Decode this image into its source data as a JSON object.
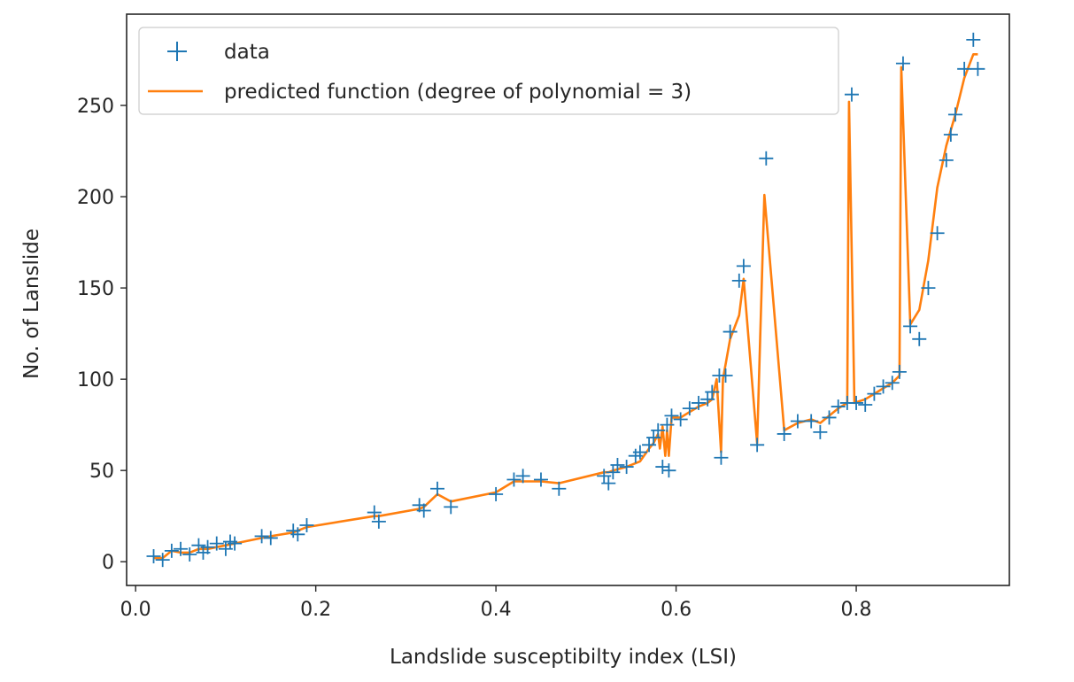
{
  "chart_data": {
    "type": "scatter",
    "title": "",
    "xlabel": "Landslide susceptibilty index (LSI)",
    "ylabel": "No. of Lanslide",
    "xlim": [
      -0.01,
      0.97
    ],
    "ylim": [
      -13,
      300
    ],
    "x_ticks": [
      0.0,
      0.2,
      0.4,
      0.6,
      0.8
    ],
    "x_tick_labels": [
      "0.0",
      "0.2",
      "0.4",
      "0.6",
      "0.8"
    ],
    "y_ticks": [
      0,
      50,
      100,
      150,
      200,
      250
    ],
    "y_tick_labels": [
      "0",
      "50",
      "100",
      "150",
      "200",
      "250"
    ],
    "grid": false,
    "legend_position": "top-left",
    "colors": {
      "data": "#1f77b4",
      "predicted": "#ff7f0e",
      "axes": "#262626"
    },
    "series": [
      {
        "name": "data",
        "marker": "+",
        "points": [
          [
            0.02,
            3
          ],
          [
            0.03,
            1
          ],
          [
            0.04,
            6
          ],
          [
            0.05,
            7
          ],
          [
            0.06,
            4
          ],
          [
            0.07,
            9
          ],
          [
            0.075,
            5
          ],
          [
            0.08,
            8
          ],
          [
            0.09,
            10
          ],
          [
            0.1,
            7
          ],
          [
            0.105,
            11
          ],
          [
            0.11,
            10
          ],
          [
            0.14,
            14
          ],
          [
            0.15,
            13
          ],
          [
            0.175,
            17
          ],
          [
            0.18,
            15
          ],
          [
            0.19,
            20
          ],
          [
            0.265,
            27
          ],
          [
            0.27,
            22
          ],
          [
            0.315,
            31
          ],
          [
            0.32,
            28
          ],
          [
            0.335,
            40
          ],
          [
            0.35,
            30
          ],
          [
            0.4,
            37
          ],
          [
            0.42,
            45
          ],
          [
            0.43,
            47
          ],
          [
            0.45,
            45
          ],
          [
            0.47,
            40
          ],
          [
            0.52,
            47
          ],
          [
            0.525,
            43
          ],
          [
            0.53,
            49
          ],
          [
            0.535,
            53
          ],
          [
            0.545,
            52
          ],
          [
            0.555,
            58
          ],
          [
            0.56,
            60
          ],
          [
            0.57,
            64
          ],
          [
            0.575,
            68
          ],
          [
            0.58,
            72
          ],
          [
            0.585,
            52
          ],
          [
            0.59,
            75
          ],
          [
            0.592,
            50
          ],
          [
            0.595,
            80
          ],
          [
            0.605,
            78
          ],
          [
            0.615,
            84
          ],
          [
            0.625,
            87
          ],
          [
            0.635,
            89
          ],
          [
            0.64,
            93
          ],
          [
            0.648,
            102
          ],
          [
            0.65,
            57
          ],
          [
            0.655,
            102
          ],
          [
            0.66,
            126
          ],
          [
            0.67,
            154
          ],
          [
            0.675,
            162
          ],
          [
            0.69,
            64
          ],
          [
            0.7,
            221
          ],
          [
            0.72,
            70
          ],
          [
            0.735,
            77
          ],
          [
            0.75,
            77
          ],
          [
            0.76,
            71
          ],
          [
            0.77,
            79
          ],
          [
            0.78,
            85
          ],
          [
            0.79,
            87
          ],
          [
            0.795,
            256
          ],
          [
            0.8,
            87
          ],
          [
            0.81,
            86
          ],
          [
            0.82,
            92
          ],
          [
            0.83,
            96
          ],
          [
            0.84,
            98
          ],
          [
            0.848,
            104
          ],
          [
            0.852,
            273
          ],
          [
            0.86,
            129
          ],
          [
            0.87,
            122
          ],
          [
            0.88,
            150
          ],
          [
            0.89,
            180
          ],
          [
            0.9,
            220
          ],
          [
            0.905,
            234
          ],
          [
            0.91,
            245
          ],
          [
            0.92,
            270
          ],
          [
            0.93,
            286
          ],
          [
            0.935,
            270
          ]
        ]
      },
      {
        "name": "predicted function (degree of polynomial = 3)",
        "marker": "line",
        "points": [
          [
            0.02,
            2
          ],
          [
            0.03,
            2
          ],
          [
            0.04,
            6
          ],
          [
            0.05,
            5
          ],
          [
            0.06,
            5
          ],
          [
            0.07,
            7
          ],
          [
            0.08,
            7
          ],
          [
            0.09,
            8
          ],
          [
            0.1,
            9
          ],
          [
            0.11,
            10
          ],
          [
            0.14,
            13
          ],
          [
            0.15,
            14
          ],
          [
            0.175,
            16
          ],
          [
            0.18,
            17
          ],
          [
            0.19,
            19
          ],
          [
            0.265,
            25
          ],
          [
            0.27,
            25
          ],
          [
            0.315,
            29
          ],
          [
            0.32,
            30
          ],
          [
            0.335,
            37
          ],
          [
            0.35,
            33
          ],
          [
            0.4,
            38
          ],
          [
            0.42,
            44
          ],
          [
            0.43,
            44
          ],
          [
            0.45,
            44
          ],
          [
            0.47,
            43
          ],
          [
            0.52,
            49
          ],
          [
            0.525,
            49
          ],
          [
            0.53,
            50
          ],
          [
            0.545,
            52
          ],
          [
            0.56,
            55
          ],
          [
            0.57,
            62
          ],
          [
            0.575,
            65
          ],
          [
            0.58,
            70
          ],
          [
            0.582,
            62
          ],
          [
            0.585,
            74
          ],
          [
            0.588,
            58
          ],
          [
            0.59,
            72
          ],
          [
            0.592,
            58
          ],
          [
            0.595,
            79
          ],
          [
            0.605,
            79
          ],
          [
            0.615,
            82
          ],
          [
            0.625,
            85
          ],
          [
            0.635,
            87
          ],
          [
            0.64,
            89
          ],
          [
            0.645,
            100
          ],
          [
            0.65,
            60
          ],
          [
            0.652,
            100
          ],
          [
            0.66,
            122
          ],
          [
            0.67,
            135
          ],
          [
            0.675,
            155
          ],
          [
            0.69,
            65
          ],
          [
            0.698,
            201
          ],
          [
            0.72,
            72
          ],
          [
            0.735,
            76
          ],
          [
            0.75,
            78
          ],
          [
            0.76,
            76
          ],
          [
            0.77,
            80
          ],
          [
            0.78,
            84
          ],
          [
            0.79,
            87
          ],
          [
            0.792,
            252
          ],
          [
            0.798,
            87
          ],
          [
            0.81,
            89
          ],
          [
            0.82,
            92
          ],
          [
            0.83,
            95
          ],
          [
            0.84,
            98
          ],
          [
            0.848,
            102
          ],
          [
            0.85,
            271
          ],
          [
            0.86,
            130
          ],
          [
            0.87,
            138
          ],
          [
            0.88,
            165
          ],
          [
            0.89,
            205
          ],
          [
            0.9,
            228
          ],
          [
            0.91,
            245
          ],
          [
            0.92,
            265
          ],
          [
            0.93,
            278
          ],
          [
            0.935,
            278
          ]
        ]
      }
    ]
  }
}
